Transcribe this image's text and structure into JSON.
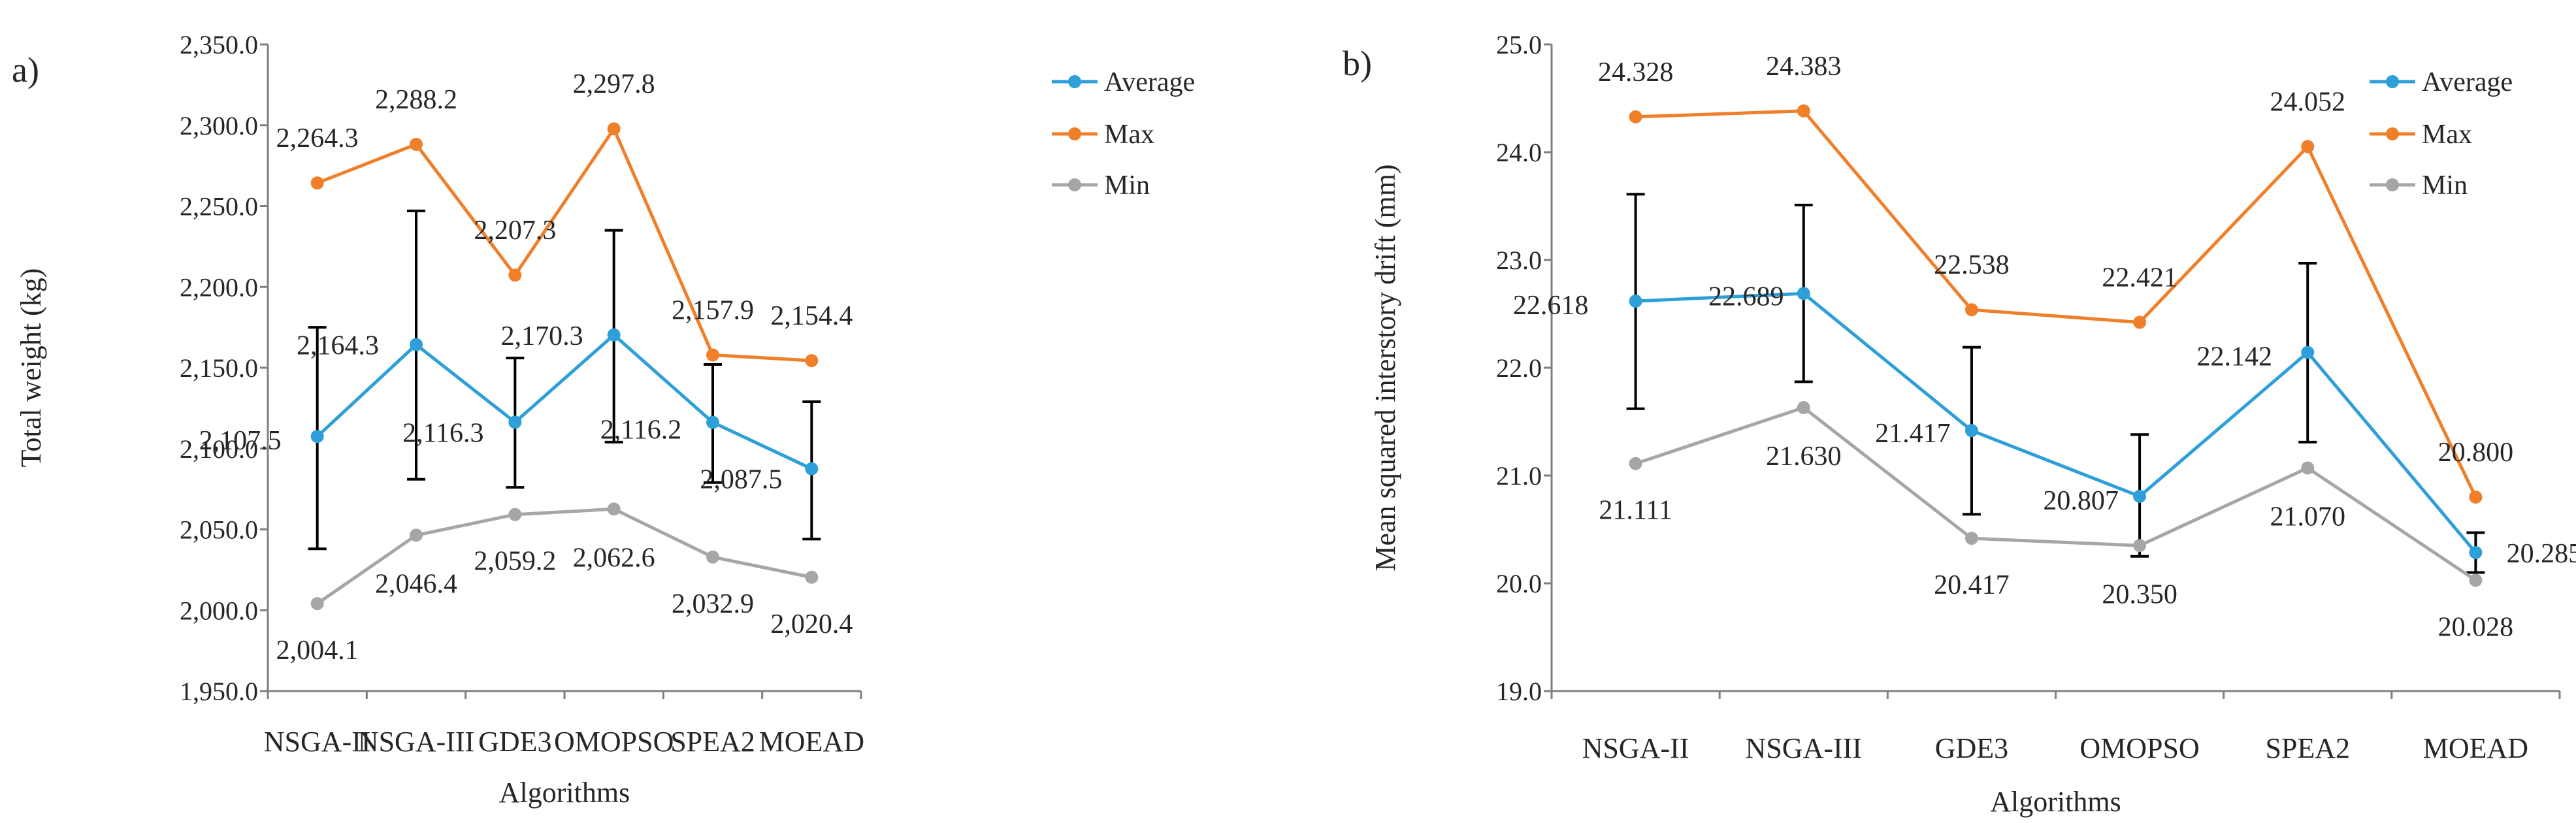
{
  "colors": {
    "average": "#2E9FD8",
    "max": "#F07F2A",
    "min": "#A6A6A6",
    "error_bar": "#000000",
    "axis": "#7F7F7F"
  },
  "chart_data": [
    {
      "type": "line",
      "panel_label": "a)",
      "xlabel": "Algorithms",
      "ylabel": "Total weight (kg)",
      "ylim": [
        1950,
        2350
      ],
      "y_ticks": [
        "1,950.0",
        "2,000.0",
        "2,050.0",
        "2,100.0",
        "2,150.0",
        "2,200.0",
        "2,250.0",
        "2,300.0",
        "2,350.0"
      ],
      "grid": false,
      "legend_position": "top-right",
      "categories": [
        "NSGA-II",
        "NSGA-III",
        "GDE3",
        "OMOPSO",
        "SPEA2",
        "MOEAD"
      ],
      "series": [
        {
          "name": "Average",
          "values": [
            2107.5,
            2164.3,
            2116.3,
            2170.3,
            2116.2,
            2087.5
          ],
          "labels": [
            "2,107.5",
            "2,164.3",
            "2,116.3",
            "2,170.3",
            "2,116.2",
            "2,087.5"
          ],
          "error_low": [
            2038,
            2081,
            2076,
            2104,
            2079,
            2044
          ],
          "error_high": [
            2175,
            2247,
            2156,
            2235,
            2152,
            2129
          ]
        },
        {
          "name": "Max",
          "values": [
            2264.3,
            2288.2,
            2207.3,
            2297.8,
            2157.9,
            2154.4
          ],
          "labels": [
            "2,264.3",
            "2,288.2",
            "2,207.3",
            "2,297.8",
            "2,157.9",
            "2,154.4"
          ]
        },
        {
          "name": "Min",
          "values": [
            2004.1,
            2046.4,
            2059.2,
            2062.6,
            2032.9,
            2020.4
          ],
          "labels": [
            "2,004.1",
            "2,046.4",
            "2,059.2",
            "2,062.6",
            "2,032.9",
            "2,020.4"
          ]
        }
      ]
    },
    {
      "type": "line",
      "panel_label": "b)",
      "xlabel": "Algorithms",
      "ylabel": "Mean squared interstory drift (mm)",
      "ylim": [
        19.0,
        25.0
      ],
      "y_ticks": [
        "19.0",
        "20.0",
        "21.0",
        "22.0",
        "23.0",
        "24.0",
        "25.0"
      ],
      "grid": false,
      "legend_position": "top-right",
      "categories": [
        "NSGA-II",
        "NSGA-III",
        "GDE3",
        "OMOPSO",
        "SPEA2",
        "MOEAD"
      ],
      "series": [
        {
          "name": "Average",
          "values": [
            22.618,
            22.689,
            21.417,
            20.807,
            22.142,
            20.285
          ],
          "labels": [
            "22.618",
            "22.689",
            "21.417",
            "20.807",
            "22.142",
            "20.285"
          ],
          "error_low": [
            21.62,
            21.87,
            20.64,
            20.25,
            21.31,
            20.1
          ],
          "error_high": [
            23.61,
            23.51,
            22.19,
            21.38,
            22.97,
            20.47
          ]
        },
        {
          "name": "Max",
          "values": [
            24.328,
            24.383,
            22.538,
            22.421,
            24.052,
            20.8
          ],
          "labels": [
            "24.328",
            "24.383",
            "22.538",
            "22.421",
            "24.052",
            "20.800"
          ]
        },
        {
          "name": "Min",
          "values": [
            21.111,
            21.63,
            20.417,
            20.35,
            21.07,
            20.028
          ],
          "labels": [
            "21.111",
            "21.630",
            "20.417",
            "20.350",
            "21.070",
            "20.028"
          ]
        }
      ]
    }
  ]
}
